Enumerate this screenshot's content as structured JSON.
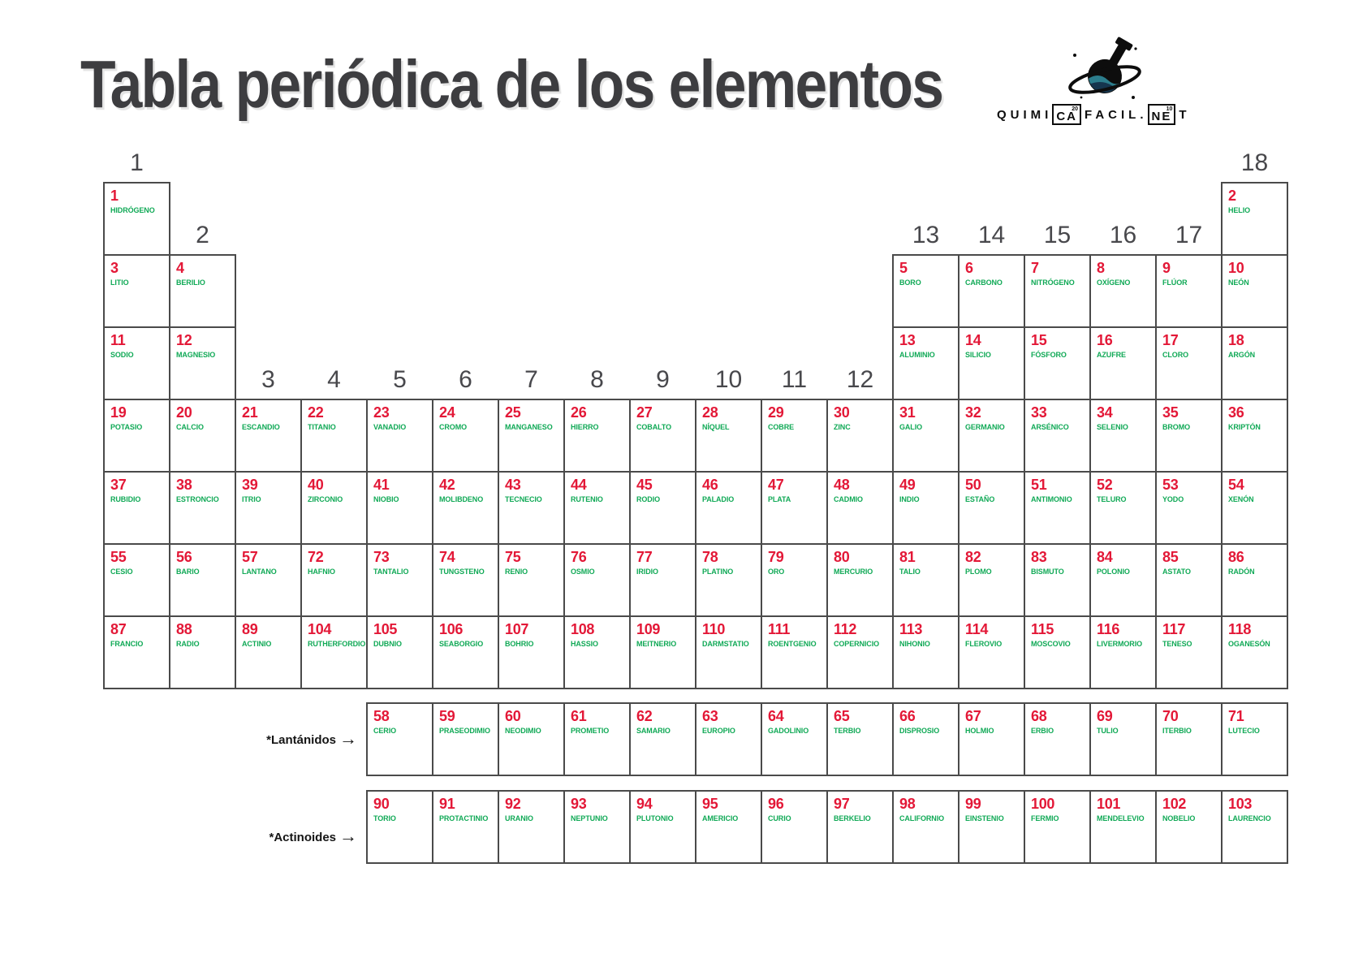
{
  "title": "Tabla periódica de los elementos",
  "logo": {
    "prefix": "QUIMI",
    "box1": "CA",
    "box1_sup": "20",
    "mid": "FACIL.",
    "box2": "NE",
    "box2_sup": "10",
    "suffix": "T"
  },
  "row_labels": {
    "lanthanides": "*Lantánidos",
    "actinides": "*Actinoides",
    "arrow": "→"
  },
  "colors": {
    "number_red": "#e31837",
    "name_green": "#10a956",
    "grid_border": "#4a4a4a",
    "header_gray": "#48484c",
    "title_gray": "#3d3d40",
    "logo_liquid_teal": "#2c7d8c",
    "logo_liquid_navy": "#16354e"
  },
  "group_headers": [
    {
      "label": "1",
      "col": 1,
      "tier": 0
    },
    {
      "label": "2",
      "col": 2,
      "tier": 1
    },
    {
      "label": "3",
      "col": 3,
      "tier": 2
    },
    {
      "label": "4",
      "col": 4,
      "tier": 2
    },
    {
      "label": "5",
      "col": 5,
      "tier": 2
    },
    {
      "label": "6",
      "col": 6,
      "tier": 2
    },
    {
      "label": "7",
      "col": 7,
      "tier": 2
    },
    {
      "label": "8",
      "col": 8,
      "tier": 2
    },
    {
      "label": "9",
      "col": 9,
      "tier": 2
    },
    {
      "label": "10",
      "col": 10,
      "tier": 2
    },
    {
      "label": "11",
      "col": 11,
      "tier": 2
    },
    {
      "label": "12",
      "col": 12,
      "tier": 2
    },
    {
      "label": "13",
      "col": 13,
      "tier": 1
    },
    {
      "label": "14",
      "col": 14,
      "tier": 1
    },
    {
      "label": "15",
      "col": 15,
      "tier": 1
    },
    {
      "label": "16",
      "col": 16,
      "tier": 1
    },
    {
      "label": "17",
      "col": 17,
      "tier": 1
    },
    {
      "label": "18",
      "col": 18,
      "tier": 0
    }
  ],
  "elements": [
    {
      "z": "1",
      "name": "HIDRÓGENO",
      "row": 1,
      "col": 1
    },
    {
      "z": "2",
      "name": "HELIO",
      "row": 1,
      "col": 18
    },
    {
      "z": "3",
      "name": "LITIO",
      "row": 2,
      "col": 1
    },
    {
      "z": "4",
      "name": "BERILIO",
      "row": 2,
      "col": 2
    },
    {
      "z": "5",
      "name": "BORO",
      "row": 2,
      "col": 13
    },
    {
      "z": "6",
      "name": "CARBONO",
      "row": 2,
      "col": 14
    },
    {
      "z": "7",
      "name": "NITRÓGENO",
      "row": 2,
      "col": 15
    },
    {
      "z": "8",
      "name": "OXÍGENO",
      "row": 2,
      "col": 16
    },
    {
      "z": "9",
      "name": "FLÚOR",
      "row": 2,
      "col": 17
    },
    {
      "z": "10",
      "name": "NEÓN",
      "row": 2,
      "col": 18
    },
    {
      "z": "11",
      "name": "SODIO",
      "row": 3,
      "col": 1
    },
    {
      "z": "12",
      "name": "MAGNESIO",
      "row": 3,
      "col": 2
    },
    {
      "z": "13",
      "name": "ALUMINIO",
      "row": 3,
      "col": 13
    },
    {
      "z": "14",
      "name": "SILICIO",
      "row": 3,
      "col": 14
    },
    {
      "z": "15",
      "name": "FÓSFORO",
      "row": 3,
      "col": 15
    },
    {
      "z": "16",
      "name": "AZUFRE",
      "row": 3,
      "col": 16
    },
    {
      "z": "17",
      "name": "CLORO",
      "row": 3,
      "col": 17
    },
    {
      "z": "18",
      "name": "ARGÓN",
      "row": 3,
      "col": 18
    },
    {
      "z": "19",
      "name": "POTASIO",
      "row": 4,
      "col": 1
    },
    {
      "z": "20",
      "name": "CALCIO",
      "row": 4,
      "col": 2
    },
    {
      "z": "21",
      "name": "ESCANDIO",
      "row": 4,
      "col": 3
    },
    {
      "z": "22",
      "name": "TITANIO",
      "row": 4,
      "col": 4
    },
    {
      "z": "23",
      "name": "VANADIO",
      "row": 4,
      "col": 5
    },
    {
      "z": "24",
      "name": "CROMO",
      "row": 4,
      "col": 6
    },
    {
      "z": "25",
      "name": "MANGANESO",
      "row": 4,
      "col": 7
    },
    {
      "z": "26",
      "name": "HIERRO",
      "row": 4,
      "col": 8
    },
    {
      "z": "27",
      "name": "COBALTO",
      "row": 4,
      "col": 9
    },
    {
      "z": "28",
      "name": "NÍQUEL",
      "row": 4,
      "col": 10
    },
    {
      "z": "29",
      "name": "COBRE",
      "row": 4,
      "col": 11
    },
    {
      "z": "30",
      "name": "ZINC",
      "row": 4,
      "col": 12
    },
    {
      "z": "31",
      "name": "GALIO",
      "row": 4,
      "col": 13
    },
    {
      "z": "32",
      "name": "GERMANIO",
      "row": 4,
      "col": 14
    },
    {
      "z": "33",
      "name": "ARSÉNICO",
      "row": 4,
      "col": 15
    },
    {
      "z": "34",
      "name": "SELENIO",
      "row": 4,
      "col": 16
    },
    {
      "z": "35",
      "name": "BROMO",
      "row": 4,
      "col": 17
    },
    {
      "z": "36",
      "name": "KRIPTÓN",
      "row": 4,
      "col": 18
    },
    {
      "z": "37",
      "name": "RUBIDIO",
      "row": 5,
      "col": 1
    },
    {
      "z": "38",
      "name": "ESTRONCIO",
      "row": 5,
      "col": 2
    },
    {
      "z": "39",
      "name": "ITRIO",
      "row": 5,
      "col": 3
    },
    {
      "z": "40",
      "name": "ZIRCONIO",
      "row": 5,
      "col": 4
    },
    {
      "z": "41",
      "name": "NIOBIO",
      "row": 5,
      "col": 5
    },
    {
      "z": "42",
      "name": "MOLIBDENO",
      "row": 5,
      "col": 6
    },
    {
      "z": "43",
      "name": "TECNECIO",
      "row": 5,
      "col": 7
    },
    {
      "z": "44",
      "name": "RUTENIO",
      "row": 5,
      "col": 8
    },
    {
      "z": "45",
      "name": "RODIO",
      "row": 5,
      "col": 9
    },
    {
      "z": "46",
      "name": "PALADIO",
      "row": 5,
      "col": 10
    },
    {
      "z": "47",
      "name": "PLATA",
      "row": 5,
      "col": 11
    },
    {
      "z": "48",
      "name": "CADMIO",
      "row": 5,
      "col": 12
    },
    {
      "z": "49",
      "name": "INDIO",
      "row": 5,
      "col": 13
    },
    {
      "z": "50",
      "name": "ESTAÑO",
      "row": 5,
      "col": 14
    },
    {
      "z": "51",
      "name": "ANTIMONIO",
      "row": 5,
      "col": 15
    },
    {
      "z": "52",
      "name": "TELURO",
      "row": 5,
      "col": 16
    },
    {
      "z": "53",
      "name": "YODO",
      "row": 5,
      "col": 17
    },
    {
      "z": "54",
      "name": "XENÓN",
      "row": 5,
      "col": 18
    },
    {
      "z": "55",
      "name": "CESIO",
      "row": 6,
      "col": 1
    },
    {
      "z": "56",
      "name": "BARIO",
      "row": 6,
      "col": 2
    },
    {
      "z": "57",
      "name": "LANTANO",
      "row": 6,
      "col": 3
    },
    {
      "z": "72",
      "name": "HAFNIO",
      "row": 6,
      "col": 4
    },
    {
      "z": "73",
      "name": "TANTALIO",
      "row": 6,
      "col": 5
    },
    {
      "z": "74",
      "name": "TUNGSTENO",
      "row": 6,
      "col": 6
    },
    {
      "z": "75",
      "name": "RENIO",
      "row": 6,
      "col": 7
    },
    {
      "z": "76",
      "name": "OSMIO",
      "row": 6,
      "col": 8
    },
    {
      "z": "77",
      "name": "IRIDIO",
      "row": 6,
      "col": 9
    },
    {
      "z": "78",
      "name": "PLATINO",
      "row": 6,
      "col": 10
    },
    {
      "z": "79",
      "name": "ORO",
      "row": 6,
      "col": 11
    },
    {
      "z": "80",
      "name": "MERCURIO",
      "row": 6,
      "col": 12
    },
    {
      "z": "81",
      "name": "TALIO",
      "row": 6,
      "col": 13
    },
    {
      "z": "82",
      "name": "PLOMO",
      "row": 6,
      "col": 14
    },
    {
      "z": "83",
      "name": "BISMUTO",
      "row": 6,
      "col": 15
    },
    {
      "z": "84",
      "name": "POLONIO",
      "row": 6,
      "col": 16
    },
    {
      "z": "85",
      "name": "ASTATO",
      "row": 6,
      "col": 17
    },
    {
      "z": "86",
      "name": "RADÓN",
      "row": 6,
      "col": 18
    },
    {
      "z": "87",
      "name": "FRANCIO",
      "row": 7,
      "col": 1
    },
    {
      "z": "88",
      "name": "RADIO",
      "row": 7,
      "col": 2
    },
    {
      "z": "89",
      "name": "ACTINIO",
      "row": 7,
      "col": 3
    },
    {
      "z": "104",
      "name": "RUTHERFORDIO",
      "row": 7,
      "col": 4
    },
    {
      "z": "105",
      "name": "DUBNIO",
      "row": 7,
      "col": 5
    },
    {
      "z": "106",
      "name": "SEABORGIO",
      "row": 7,
      "col": 6
    },
    {
      "z": "107",
      "name": "BOHRIO",
      "row": 7,
      "col": 7
    },
    {
      "z": "108",
      "name": "HASSIO",
      "row": 7,
      "col": 8
    },
    {
      "z": "109",
      "name": "MEITNERIO",
      "row": 7,
      "col": 9
    },
    {
      "z": "110",
      "name": "DARMSTATIO",
      "row": 7,
      "col": 10
    },
    {
      "z": "111",
      "name": "ROENTGENIO",
      "row": 7,
      "col": 11
    },
    {
      "z": "112",
      "name": "COPERNICIO",
      "row": 7,
      "col": 12
    },
    {
      "z": "113",
      "name": "NIHONIO",
      "row": 7,
      "col": 13
    },
    {
      "z": "114",
      "name": "FLEROVIO",
      "row": 7,
      "col": 14
    },
    {
      "z": "115",
      "name": "MOSCOVIO",
      "row": 7,
      "col": 15
    },
    {
      "z": "116",
      "name": "LIVERMORIO",
      "row": 7,
      "col": 16
    },
    {
      "z": "117",
      "name": "TENESO",
      "row": 7,
      "col": 17
    },
    {
      "z": "118",
      "name": "OGANESÓN",
      "row": 7,
      "col": 18
    }
  ],
  "lanthanides": [
    {
      "z": "58",
      "name": "CERIO"
    },
    {
      "z": "59",
      "name": "PRASEODIMIO"
    },
    {
      "z": "60",
      "name": "NEODIMIO"
    },
    {
      "z": "61",
      "name": "PROMETIO"
    },
    {
      "z": "62",
      "name": "SAMARIO"
    },
    {
      "z": "63",
      "name": "EUROPIO"
    },
    {
      "z": "64",
      "name": "GADOLINIO"
    },
    {
      "z": "65",
      "name": "TERBIO"
    },
    {
      "z": "66",
      "name": "DISPROSIO"
    },
    {
      "z": "67",
      "name": "HOLMIO"
    },
    {
      "z": "68",
      "name": "ERBIO"
    },
    {
      "z": "69",
      "name": "TULIO"
    },
    {
      "z": "70",
      "name": "ITERBIO"
    },
    {
      "z": "71",
      "name": "LUTECIO"
    }
  ],
  "actinides": [
    {
      "z": "90",
      "name": "TORIO"
    },
    {
      "z": "91",
      "name": "PROTACTINIO"
    },
    {
      "z": "92",
      "name": "URANIO"
    },
    {
      "z": "93",
      "name": "NEPTUNIO"
    },
    {
      "z": "94",
      "name": "PLUTONIO"
    },
    {
      "z": "95",
      "name": "AMERICIO"
    },
    {
      "z": "96",
      "name": "CURIO"
    },
    {
      "z": "97",
      "name": "BERKELIO"
    },
    {
      "z": "98",
      "name": "CALIFORNIO"
    },
    {
      "z": "99",
      "name": "EINSTENIO"
    },
    {
      "z": "100",
      "name": "FERMIO"
    },
    {
      "z": "101",
      "name": "MENDELEVIO"
    },
    {
      "z": "102",
      "name": "NOBELIO"
    },
    {
      "z": "103",
      "name": "LAURENCIO"
    }
  ]
}
